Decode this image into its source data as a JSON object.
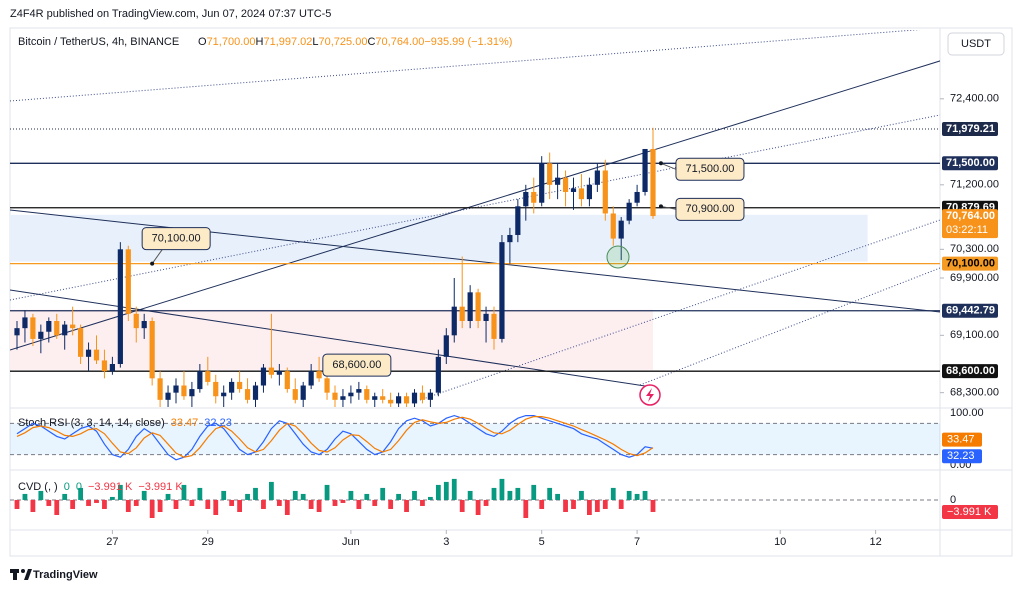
{
  "header": {
    "publisher": "Z4F4R published on TradingView.com, Jun 07, 2024 07:37 UTC-5",
    "brand": "TradingView"
  },
  "chart_data": [
    {
      "type": "candlestick",
      "title": "Bitcoin / TetherUS, 4h, BINANCE",
      "ohlc": [
        {
          "key": "O",
          "label": "71,700.00"
        },
        {
          "key": "H",
          "label": "71,997.02"
        },
        {
          "key": "L",
          "label": "70,725.00"
        },
        {
          "key": "C",
          "label": "70,764.00"
        }
      ],
      "change": "−935.99 (−1.31%)",
      "currency": "USDT",
      "up_color": "#0d2a66",
      "down_color": "#f7931a",
      "categories": [
        null,
        null,
        null,
        null,
        null,
        null,
        null,
        null,
        null,
        null,
        null,
        null,
        null,
        null,
        null,
        null,
        null,
        null,
        null,
        null,
        null,
        null,
        null,
        null,
        null,
        null,
        null,
        null,
        null,
        null,
        null,
        null,
        null,
        null,
        null,
        null,
        null,
        null,
        null,
        null,
        null,
        null,
        null,
        null,
        null,
        null,
        null,
        null,
        null,
        null,
        null,
        null,
        null,
        null,
        null,
        null,
        null,
        null,
        null,
        null,
        null,
        null,
        null,
        null,
        null,
        null,
        null,
        null,
        null,
        null,
        null,
        null,
        null,
        null,
        null,
        null,
        null,
        null,
        null,
        null,
        null
      ],
      "open": [
        69100,
        69200,
        69350,
        69050,
        69150,
        69300,
        69100,
        69250,
        69200,
        68800,
        68900,
        68750,
        68600,
        68700,
        70300,
        69400,
        69200,
        69300,
        68500,
        68200,
        68300,
        68400,
        68250,
        68350,
        68600,
        68450,
        68250,
        68300,
        68450,
        68350,
        68200,
        68400,
        68650,
        68550,
        68600,
        68350,
        68200,
        68400,
        68600,
        68500,
        68300,
        68200,
        68250,
        68300,
        68350,
        68200,
        68250,
        68200,
        68150,
        68250,
        68150,
        68300,
        68200,
        68300,
        68800,
        69100,
        69500,
        69300,
        69700,
        69300,
        69400,
        69050,
        70400,
        70500,
        70900,
        71100,
        70950,
        71500,
        71200,
        71300,
        71100,
        71150,
        71000,
        71200,
        71400,
        70800,
        70450,
        70700,
        70950,
        71100,
        71700
      ],
      "high": [
        69300,
        69450,
        69400,
        69250,
        69350,
        69400,
        69300,
        69500,
        69250,
        69000,
        69100,
        68900,
        68800,
        70400,
        70350,
        69500,
        69400,
        69350,
        68600,
        68400,
        68500,
        68600,
        68450,
        68700,
        68800,
        68550,
        68400,
        68500,
        68600,
        68500,
        68450,
        68700,
        69400,
        68700,
        68650,
        68500,
        68450,
        68700,
        68800,
        68600,
        68400,
        68350,
        68400,
        68450,
        68400,
        68300,
        68350,
        68300,
        68300,
        68300,
        68350,
        68400,
        68350,
        68900,
        69200,
        69900,
        70200,
        69800,
        69750,
        69500,
        69500,
        70500,
        70600,
        71000,
        71200,
        71300,
        71600,
        71650,
        71500,
        71400,
        71300,
        71350,
        71300,
        71500,
        71550,
        70900,
        70750,
        71000,
        71200,
        71700,
        71997.02
      ],
      "low": [
        68900,
        69000,
        68950,
        68850,
        69000,
        69050,
        68900,
        69100,
        68700,
        68600,
        68700,
        68500,
        68550,
        68650,
        69300,
        69000,
        69050,
        68400,
        68100,
        68050,
        68150,
        68200,
        68100,
        68300,
        68400,
        68150,
        68100,
        68200,
        68300,
        68150,
        68100,
        68300,
        68500,
        68400,
        68300,
        68150,
        68100,
        68350,
        68450,
        68200,
        68100,
        68100,
        68150,
        68200,
        68150,
        68100,
        68150,
        68100,
        68100,
        68100,
        68100,
        68150,
        68100,
        68250,
        68700,
        69000,
        69200,
        69200,
        69200,
        69000,
        68900,
        69000,
        70100,
        70400,
        70700,
        70800,
        70900,
        71000,
        71000,
        70900,
        70850,
        70900,
        70900,
        71100,
        70700,
        70350,
        70150,
        70650,
        70900,
        71050,
        70725
      ],
      "close": [
        69200,
        69350,
        69050,
        69150,
        69300,
        69100,
        69250,
        69200,
        68800,
        68900,
        68750,
        68600,
        68700,
        70300,
        69400,
        69200,
        69300,
        68500,
        68200,
        68300,
        68400,
        68250,
        68350,
        68600,
        68450,
        68250,
        68300,
        68450,
        68350,
        68200,
        68400,
        68650,
        68550,
        68600,
        68350,
        68200,
        68400,
        68600,
        68500,
        68300,
        68200,
        68250,
        68300,
        68350,
        68200,
        68250,
        68200,
        68150,
        68250,
        68150,
        68300,
        68200,
        68300,
        68800,
        69100,
        69500,
        69300,
        69700,
        69300,
        69400,
        69050,
        70400,
        70500,
        70900,
        71100,
        70950,
        71500,
        71200,
        71300,
        71100,
        71150,
        71000,
        71200,
        71400,
        70800,
        70450,
        70700,
        70950,
        71100,
        71700,
        70764
      ],
      "xlim": [
        -1,
        116
      ],
      "ylim": [
        68100,
        73360
      ],
      "xticks": [
        {
          "value": 12,
          "label": "27"
        },
        {
          "value": 24,
          "label": "29"
        },
        {
          "value": 42,
          "label": "Jun"
        },
        {
          "value": 54,
          "label": "3"
        },
        {
          "value": 66,
          "label": "5"
        },
        {
          "value": 78,
          "label": "7"
        },
        {
          "value": 96,
          "label": "10"
        },
        {
          "value": 108,
          "label": "12"
        }
      ],
      "yticks": [
        {
          "value": 72400,
          "label": "72,400.00"
        },
        {
          "value": 71200,
          "label": "71,200.00"
        },
        {
          "value": 70300,
          "label": "70,300.00"
        },
        {
          "value": 69900,
          "label": "69,900.00"
        },
        {
          "value": 69100,
          "label": "69,100.00"
        },
        {
          "value": 68300,
          "label": "68,300.00"
        }
      ],
      "grid": false,
      "zones": [
        {
          "from": 70128,
          "to": 70782,
          "xrange": [
            -1,
            107
          ],
          "color": "#e8f1fb"
        },
        {
          "from": 68620,
          "to": 69457,
          "xrange": [
            -1,
            80
          ],
          "color": "#fdeef0"
        }
      ],
      "levels": [
        {
          "value": 71979.21,
          "label": "71,979.21",
          "color": "#1e2a4a",
          "style": "dotted",
          "text_color": "#ffffff"
        },
        {
          "value": 71500,
          "label": "71,500.00",
          "color": "#1e2f5a",
          "style": "solid",
          "text_color": "#ffffff"
        },
        {
          "value": 70879.69,
          "label": "70,879.69",
          "color": "#111111",
          "style": "solid",
          "text_color": "#ffffff"
        },
        {
          "value": 70100,
          "label": "70,100.00",
          "color": "#f59a23",
          "style": "solid",
          "text_color": "#000000"
        },
        {
          "value": 69442.79,
          "label": "69,442.79",
          "color": "#1e2f5a",
          "style": "solid",
          "text_color": "#ffffff"
        },
        {
          "value": 68600,
          "label": "68,600.00",
          "color": "#111111",
          "style": "solid",
          "text_color": "#ffffff"
        }
      ],
      "last_price": {
        "value": 70764,
        "label": "70,764.00",
        "countdown": "03:22:11",
        "color": "#f7931a"
      },
      "annotations": [
        {
          "text": "70,100.00",
          "value": 70100,
          "x": 17
        },
        {
          "text": "68,600.00",
          "value": 68600,
          "x": 43
        },
        {
          "text": "71,500.00",
          "value": 71500,
          "x": 81
        },
        {
          "text": "70,900.00",
          "value": 70900,
          "x": 81
        }
      ]
    },
    {
      "type": "line",
      "title": "Stoch RSI (3, 3, 14, 14, close)",
      "ylim": [
        0,
        100
      ],
      "yticks": [
        {
          "value": 100,
          "label": "100.00"
        },
        {
          "value": 0,
          "label": "0.00"
        }
      ],
      "band": [
        20,
        80
      ],
      "series": [
        {
          "color": "#2962ff",
          "value_label": "32.23",
          "values": [
            60,
            70,
            80,
            75,
            65,
            55,
            50,
            60,
            70,
            75,
            65,
            40,
            20,
            15,
            30,
            55,
            70,
            60,
            40,
            20,
            10,
            15,
            30,
            55,
            75,
            80,
            70,
            50,
            30,
            20,
            25,
            45,
            70,
            85,
            80,
            60,
            40,
            25,
            20,
            30,
            50,
            65,
            60,
            45,
            30,
            20,
            25,
            45,
            70,
            85,
            90,
            85,
            75,
            80,
            90,
            95,
            90,
            80,
            70,
            60,
            55,
            65,
            80,
            90,
            95,
            95,
            90,
            85,
            80,
            75,
            70,
            60,
            55,
            50,
            40,
            30,
            20,
            15,
            20,
            35,
            32.23
          ]
        },
        {
          "color": "#f57c00",
          "value_label": "33.47",
          "values": [
            55,
            62,
            72,
            75,
            72,
            65,
            57,
            55,
            60,
            68,
            70,
            60,
            42,
            25,
            22,
            33,
            52,
            62,
            57,
            40,
            23,
            15,
            18,
            33,
            53,
            70,
            75,
            65,
            50,
            33,
            25,
            30,
            47,
            67,
            80,
            75,
            60,
            42,
            28,
            25,
            33,
            48,
            58,
            57,
            45,
            32,
            25,
            30,
            47,
            67,
            82,
            87,
            83,
            80,
            82,
            88,
            92,
            88,
            80,
            70,
            62,
            60,
            67,
            78,
            88,
            93,
            93,
            90,
            85,
            80,
            75,
            68,
            62,
            55,
            48,
            40,
            30,
            22,
            18,
            23,
            33.47
          ]
        }
      ]
    },
    {
      "type": "bar",
      "title": "CVD (, )",
      "legend_values": [
        "0",
        "0",
        "−3.991 K",
        "−3.991 K"
      ],
      "ylim": [
        -17.3,
        7.3
      ],
      "yticks": [
        0
      ],
      "up_color": "#089981",
      "down_color": "#f23645",
      "last_label": "−3.991 K",
      "values": [
        -3,
        2,
        -4,
        3,
        -2,
        -5,
        2,
        -3,
        4,
        -2,
        -1,
        -3,
        1,
        5,
        -4,
        -2,
        3,
        -6,
        -4,
        2,
        -3,
        5,
        -2,
        4,
        -3,
        -5,
        3,
        -2,
        -4,
        2,
        4,
        -3,
        6,
        -2,
        -5,
        3,
        2,
        -3,
        -4,
        5,
        -2,
        -1,
        3,
        -3,
        2,
        -2,
        4,
        -3,
        2,
        -4,
        3,
        -2,
        1,
        5,
        6,
        7,
        -4,
        3,
        -5,
        -2,
        4,
        7,
        3,
        4,
        -6,
        5,
        -3,
        4,
        2,
        -4,
        -3,
        3,
        -5,
        -4,
        -3,
        4,
        -3,
        3,
        2,
        3,
        -3.991
      ]
    }
  ]
}
